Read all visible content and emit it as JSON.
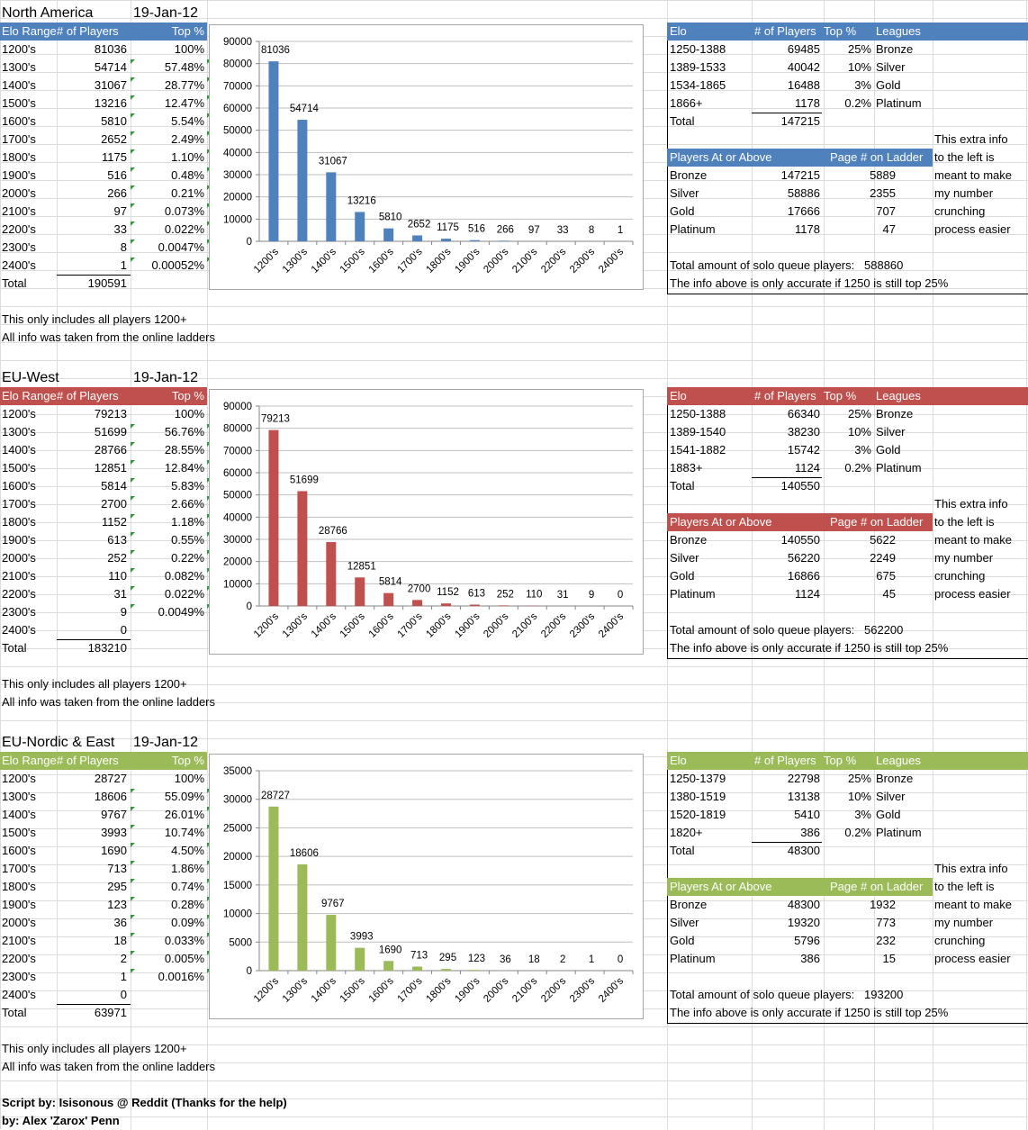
{
  "regions": [
    {
      "name": "North America",
      "date": "19-Jan-12",
      "color": "#4f81bd",
      "headers": {
        "elo": "Elo Range",
        "players": "# of Players",
        "top": "Top %"
      },
      "rows": [
        [
          "1200's",
          "81036",
          "100%"
        ],
        [
          "1300's",
          "54714",
          "57.48%"
        ],
        [
          "1400's",
          "31067",
          "28.77%"
        ],
        [
          "1500's",
          "13216",
          "12.47%"
        ],
        [
          "1600's",
          "5810",
          "5.54%"
        ],
        [
          "1700's",
          "2652",
          "2.49%"
        ],
        [
          "1800's",
          "1175",
          "1.10%"
        ],
        [
          "1900's",
          "516",
          "0.48%"
        ],
        [
          "2000's",
          "266",
          "0.21%"
        ],
        [
          "2100's",
          "97",
          "0.073%"
        ],
        [
          "2200's",
          "33",
          "0.022%"
        ],
        [
          "2300's",
          "8",
          "0.0047%"
        ],
        [
          "2400's",
          "1",
          "0.00052%"
        ]
      ],
      "total_label": "Total",
      "total": "190591",
      "note1": "This only includes all players 1200+",
      "note2": "All info was taken from the online ladders",
      "chart_data": {
        "type": "bar",
        "categories": [
          "1200's",
          "1300's",
          "1400's",
          "1500's",
          "1600's",
          "1700's",
          "1800's",
          "1900's",
          "2000's",
          "2100's",
          "2200's",
          "2300's",
          "2400's"
        ],
        "values": [
          81036,
          54714,
          31067,
          13216,
          5810,
          2652,
          1175,
          516,
          266,
          97,
          33,
          8,
          1
        ],
        "ylim": [
          0,
          90000
        ],
        "yticks": [
          0,
          10000,
          20000,
          30000,
          40000,
          50000,
          60000,
          70000,
          80000,
          90000
        ]
      },
      "leagues": {
        "headers": {
          "elo": "Elo",
          "players": "# of Players",
          "top": "Top %",
          "leagues": "Leagues"
        },
        "rows": [
          [
            "1250-1388",
            "69485",
            "25%",
            "Bronze"
          ],
          [
            "1389-1533",
            "40042",
            "10%",
            "Silver"
          ],
          [
            "1534-1865",
            "16488",
            "3%",
            "Gold"
          ],
          [
            "1866+",
            "1178",
            "0.2%",
            "Platinum"
          ]
        ],
        "total_label": "Total",
        "total": "147215"
      },
      "ladder": {
        "headers": {
          "players": "Players At or Above",
          "page": "Page # on Ladder"
        },
        "rows": [
          [
            "Bronze",
            "147215",
            "5889"
          ],
          [
            "Silver",
            "58886",
            "2355"
          ],
          [
            "Gold",
            "17666",
            "707"
          ],
          [
            "Platinum",
            "1178",
            "47"
          ]
        ]
      },
      "side_note": [
        "This extra info",
        "to the left is",
        "meant to make",
        "my number",
        "crunching",
        "process easier"
      ],
      "solo_label": "Total amount of solo queue players:",
      "solo_value": "588860",
      "accuracy_note": "The info above is only accurate if 1250 is still top 25%"
    },
    {
      "name": "EU-West",
      "date": "19-Jan-12",
      "color": "#c0504d",
      "headers": {
        "elo": "Elo Range",
        "players": "# of Players",
        "top": "Top %"
      },
      "rows": [
        [
          "1200's",
          "79213",
          "100%"
        ],
        [
          "1300's",
          "51699",
          "56.76%"
        ],
        [
          "1400's",
          "28766",
          "28.55%"
        ],
        [
          "1500's",
          "12851",
          "12.84%"
        ],
        [
          "1600's",
          "5814",
          "5.83%"
        ],
        [
          "1700's",
          "2700",
          "2.66%"
        ],
        [
          "1800's",
          "1152",
          "1.18%"
        ],
        [
          "1900's",
          "613",
          "0.55%"
        ],
        [
          "2000's",
          "252",
          "0.22%"
        ],
        [
          "2100's",
          "110",
          "0.082%"
        ],
        [
          "2200's",
          "31",
          "0.022%"
        ],
        [
          "2300's",
          "9",
          "0.0049%"
        ],
        [
          "2400's",
          "0",
          ""
        ]
      ],
      "total_label": "Total",
      "total": "183210",
      "note1": "This only includes all players 1200+",
      "note2": "All info was taken from the online ladders",
      "chart_data": {
        "type": "bar",
        "categories": [
          "1200's",
          "1300's",
          "1400's",
          "1500's",
          "1600's",
          "1700's",
          "1800's",
          "1900's",
          "2000's",
          "2100's",
          "2200's",
          "2300's",
          "2400's"
        ],
        "values": [
          79213,
          51699,
          28766,
          12851,
          5814,
          2700,
          1152,
          613,
          252,
          110,
          31,
          9,
          0
        ],
        "ylim": [
          0,
          90000
        ],
        "yticks": [
          0,
          10000,
          20000,
          30000,
          40000,
          50000,
          60000,
          70000,
          80000,
          90000
        ]
      },
      "leagues": {
        "headers": {
          "elo": "Elo",
          "players": "# of Players",
          "top": "Top %",
          "leagues": "Leagues"
        },
        "rows": [
          [
            "1250-1388",
            "66340",
            "25%",
            "Bronze"
          ],
          [
            "1389-1540",
            "38230",
            "10%",
            "Silver"
          ],
          [
            "1541-1882",
            "15742",
            "3%",
            "Gold"
          ],
          [
            "1883+",
            "1124",
            "0.2%",
            "Platinum"
          ]
        ],
        "total_label": "Total",
        "total": "140550"
      },
      "ladder": {
        "headers": {
          "players": "Players At or Above",
          "page": "Page # on Ladder"
        },
        "rows": [
          [
            "Bronze",
            "140550",
            "5622"
          ],
          [
            "Silver",
            "56220",
            "2249"
          ],
          [
            "Gold",
            "16866",
            "675"
          ],
          [
            "Platinum",
            "1124",
            "45"
          ]
        ]
      },
      "side_note": [
        "This extra info",
        "to the left is",
        "meant to make",
        "my number",
        "crunching",
        "process easier"
      ],
      "solo_label": "Total amount of solo queue players:",
      "solo_value": "562200",
      "accuracy_note": "The info above is only accurate if 1250 is still top 25%"
    },
    {
      "name": "EU-Nordic & East",
      "date": "19-Jan-12",
      "color": "#9bbb59",
      "headers": {
        "elo": "Elo Range",
        "players": "# of Players",
        "top": "Top %"
      },
      "rows": [
        [
          "1200's",
          "28727",
          "100%"
        ],
        [
          "1300's",
          "18606",
          "55.09%"
        ],
        [
          "1400's",
          "9767",
          "26.01%"
        ],
        [
          "1500's",
          "3993",
          "10.74%"
        ],
        [
          "1600's",
          "1690",
          "4.50%"
        ],
        [
          "1700's",
          "713",
          "1.86%"
        ],
        [
          "1800's",
          "295",
          "0.74%"
        ],
        [
          "1900's",
          "123",
          "0.28%"
        ],
        [
          "2000's",
          "36",
          "0.09%"
        ],
        [
          "2100's",
          "18",
          "0.033%"
        ],
        [
          "2200's",
          "2",
          "0.005%"
        ],
        [
          "2300's",
          "1",
          "0.0016%"
        ],
        [
          "2400's",
          "0",
          ""
        ]
      ],
      "total_label": "Total",
      "total": "63971",
      "note1": "This only includes all players 1200+",
      "note2": "All info was taken from the online ladders",
      "chart_data": {
        "type": "bar",
        "categories": [
          "1200's",
          "1300's",
          "1400's",
          "1500's",
          "1600's",
          "1700's",
          "1800's",
          "1900's",
          "2000's",
          "2100's",
          "2200's",
          "2300's",
          "2400's"
        ],
        "values": [
          28727,
          18606,
          9767,
          3993,
          1690,
          713,
          295,
          123,
          36,
          18,
          2,
          1,
          0
        ],
        "ylim": [
          0,
          35000
        ],
        "yticks": [
          0,
          5000,
          10000,
          15000,
          20000,
          25000,
          30000,
          35000
        ]
      },
      "leagues": {
        "headers": {
          "elo": "Elo",
          "players": "# of Players",
          "top": "Top %",
          "leagues": "Leagues"
        },
        "rows": [
          [
            "1250-1379",
            "22798",
            "25%",
            "Bronze"
          ],
          [
            "1380-1519",
            "13138",
            "10%",
            "Silver"
          ],
          [
            "1520-1819",
            "5410",
            "3%",
            "Gold"
          ],
          [
            "1820+",
            "386",
            "0.2%",
            "Platinum"
          ]
        ],
        "total_label": "Total",
        "total": "48300"
      },
      "ladder": {
        "headers": {
          "players": "Players At or Above",
          "page": "Page # on Ladder"
        },
        "rows": [
          [
            "Bronze",
            "48300",
            "1932"
          ],
          [
            "Silver",
            "19320",
            "773"
          ],
          [
            "Gold",
            "5796",
            "232"
          ],
          [
            "Platinum",
            "386",
            "15"
          ]
        ]
      },
      "side_note": [
        "This extra info",
        "to the left is",
        "meant to make",
        "my number",
        "crunching",
        "process easier"
      ],
      "solo_label": "Total amount of solo queue players:",
      "solo_value": "193200",
      "accuracy_note": "The info above is only accurate if 1250 is still top 25%"
    }
  ],
  "credits": {
    "line1": "Script by: Isisonous @ Reddit (Thanks for the help)",
    "line2": "by: Alex 'Zarox' Penn"
  }
}
